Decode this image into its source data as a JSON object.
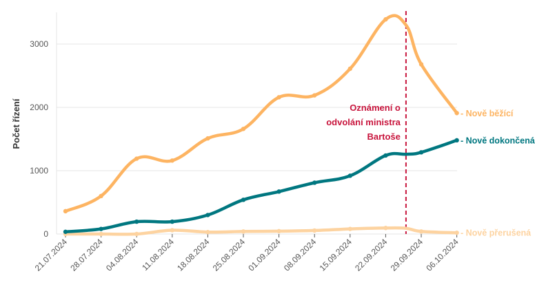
{
  "chart_data": {
    "type": "line",
    "ylabel": "Počet řízení",
    "xlabel": "",
    "title": "",
    "ylim": [
      0,
      3500
    ],
    "yticks": [
      0,
      1000,
      2000,
      3000
    ],
    "ytick_labels": [
      "0",
      "1000",
      "2000",
      "3000"
    ],
    "xticks": [
      "21.07.2024",
      "28.07.2024",
      "04.08.2024",
      "11.08.2024",
      "18.08.2024",
      "25.08.2024",
      "01.09.2024",
      "08.09.2024",
      "15.09.2024",
      "22.09.2024",
      "29.09.2024",
      "06.10.2024"
    ],
    "x": [
      "21.07.2024",
      "28.07.2024",
      "04.08.2024",
      "11.08.2024",
      "18.08.2024",
      "25.08.2024",
      "01.09.2024",
      "08.09.2024",
      "15.09.2024",
      "22.09.2024",
      "29.09.2024",
      "06.10.2024"
    ],
    "x_extra_point": "26.09.2024",
    "grid": "horizontal",
    "series": [
      {
        "name": "Nově běžící",
        "color": "#fdb462",
        "values": [
          360,
          600,
          1190,
          1160,
          1510,
          1660,
          2160,
          2190,
          2610,
          3390,
          2680,
          1910
        ],
        "value_at_extra_point": 3300
      },
      {
        "name": "Nově dokončená",
        "color": "#007780",
        "values": [
          35,
          80,
          195,
          195,
          300,
          540,
          670,
          810,
          920,
          1240,
          1290,
          1480
        ],
        "value_at_extra_point": 1260
      },
      {
        "name": "Nově přerušená",
        "color": "#fdd3a0",
        "values": [
          0,
          0,
          0,
          60,
          30,
          40,
          45,
          55,
          80,
          95,
          40,
          20
        ],
        "value_at_extra_point": 90
      }
    ],
    "annotation": {
      "lines": [
        "Oznámení o",
        "odvolání ministra",
        "Bartoše"
      ],
      "x": "26.09.2024",
      "color": "#c8143c"
    }
  }
}
